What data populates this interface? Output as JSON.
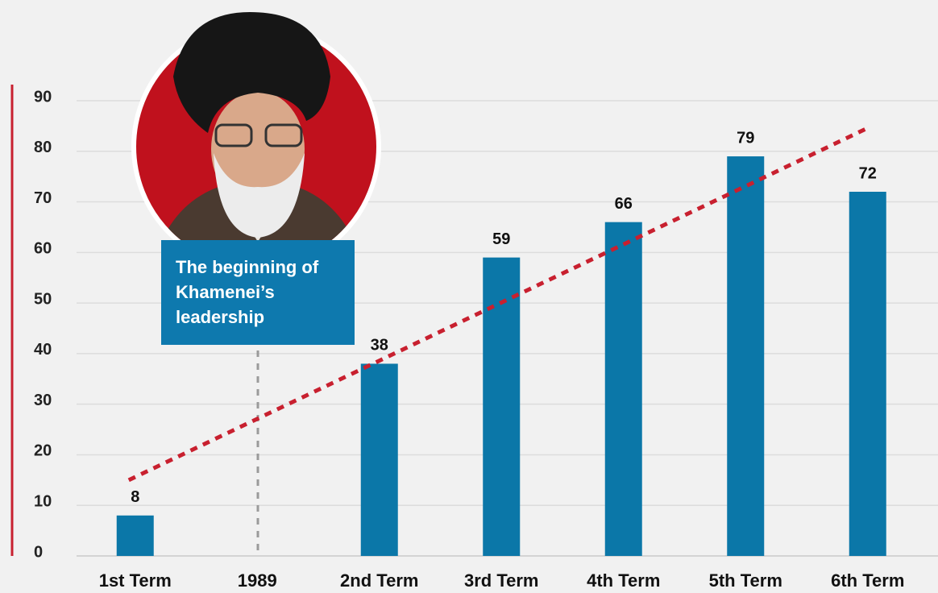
{
  "chart_data": {
    "type": "bar",
    "categories": [
      "1st Term",
      "1989",
      "2nd Term",
      "3rd Term",
      "4th Term",
      "5th Term",
      "6th Term"
    ],
    "values": [
      8,
      null,
      38,
      59,
      66,
      79,
      72
    ],
    "color": "#0b77a8",
    "ylim": [
      0,
      90
    ],
    "yticks": [
      0,
      10,
      20,
      30,
      40,
      50,
      60,
      70,
      80,
      90
    ],
    "grid": true,
    "trendline": {
      "color": "#c8202f",
      "style": "dashed"
    },
    "annotation": "The beginning of Khamenei’s leadership"
  }
}
